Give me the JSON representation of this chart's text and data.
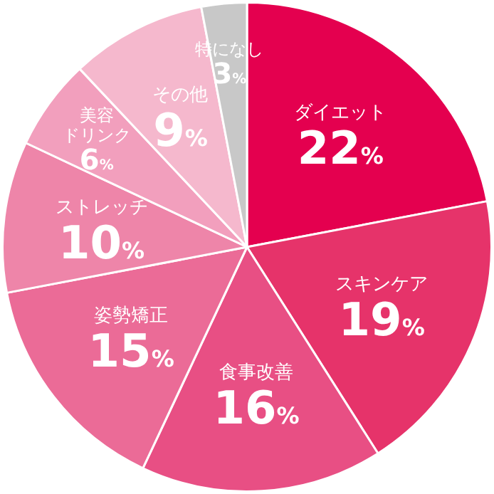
{
  "chart_data": {
    "type": "pie",
    "categories": [
      "ダイエット",
      "スキンケア",
      "食事改善",
      "姿勢矯正",
      "ストレッチ",
      "美容ドリンク",
      "その他",
      "特になし"
    ],
    "values": [
      22,
      19,
      16,
      15,
      10,
      6,
      9,
      3
    ],
    "value_labels": [
      "22%",
      "19%",
      "16%",
      "15%",
      "10%",
      "6%",
      "9%",
      "3%"
    ],
    "colors": [
      "#e4004f",
      "#e6336a",
      "#e84f84",
      "#eb6b97",
      "#ee85a9",
      "#f29fbd",
      "#f5b8cd",
      "#c8c8c8"
    ],
    "legend": false
  }
}
